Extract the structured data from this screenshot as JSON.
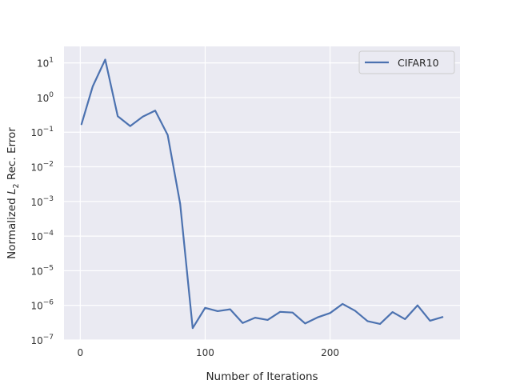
{
  "chart_data": {
    "type": "line",
    "title": "",
    "xlabel": "Number of Iterations",
    "ylabel": "Normalized L2 Rec. Error",
    "yscale": "log",
    "xlim": [
      -13,
      304
    ],
    "ylim": [
      1e-07,
      30
    ],
    "xticks": [
      0,
      100,
      200
    ],
    "yticks": [
      {
        "value": 1e-07,
        "label": "10^-7"
      },
      {
        "value": 1e-06,
        "label": "10^-6"
      },
      {
        "value": 1e-05,
        "label": "10^-5"
      },
      {
        "value": 0.0001,
        "label": "10^-4"
      },
      {
        "value": 0.001,
        "label": "10^-3"
      },
      {
        "value": 0.01,
        "label": "10^-2"
      },
      {
        "value": 0.1,
        "label": "10^-1"
      },
      {
        "value": 1,
        "label": "10^0"
      },
      {
        "value": 10,
        "label": "10^1"
      }
    ],
    "grid": true,
    "legend_position": "top-right",
    "series": [
      {
        "name": "CIFAR10",
        "color": "#4c72b0",
        "x": [
          1,
          10,
          20,
          30,
          40,
          50,
          60,
          70,
          80,
          90,
          100,
          110,
          120,
          130,
          140,
          150,
          160,
          170,
          180,
          190,
          200,
          210,
          220,
          230,
          240,
          250,
          260,
          270,
          280,
          290
        ],
        "y": [
          0.17,
          2.1,
          12.5,
          0.29,
          0.15,
          0.28,
          0.42,
          0.083,
          0.00085,
          2.2e-07,
          8.5e-07,
          6.8e-07,
          7.7e-07,
          3.1e-07,
          4.4e-07,
          3.8e-07,
          6.5e-07,
          6.2e-07,
          3e-07,
          4.5e-07,
          6e-07,
          1.1e-06,
          7e-07,
          3.5e-07,
          2.9e-07,
          6.4e-07,
          4e-07,
          1e-06,
          3.6e-07,
          4.6e-07
        ]
      }
    ]
  }
}
